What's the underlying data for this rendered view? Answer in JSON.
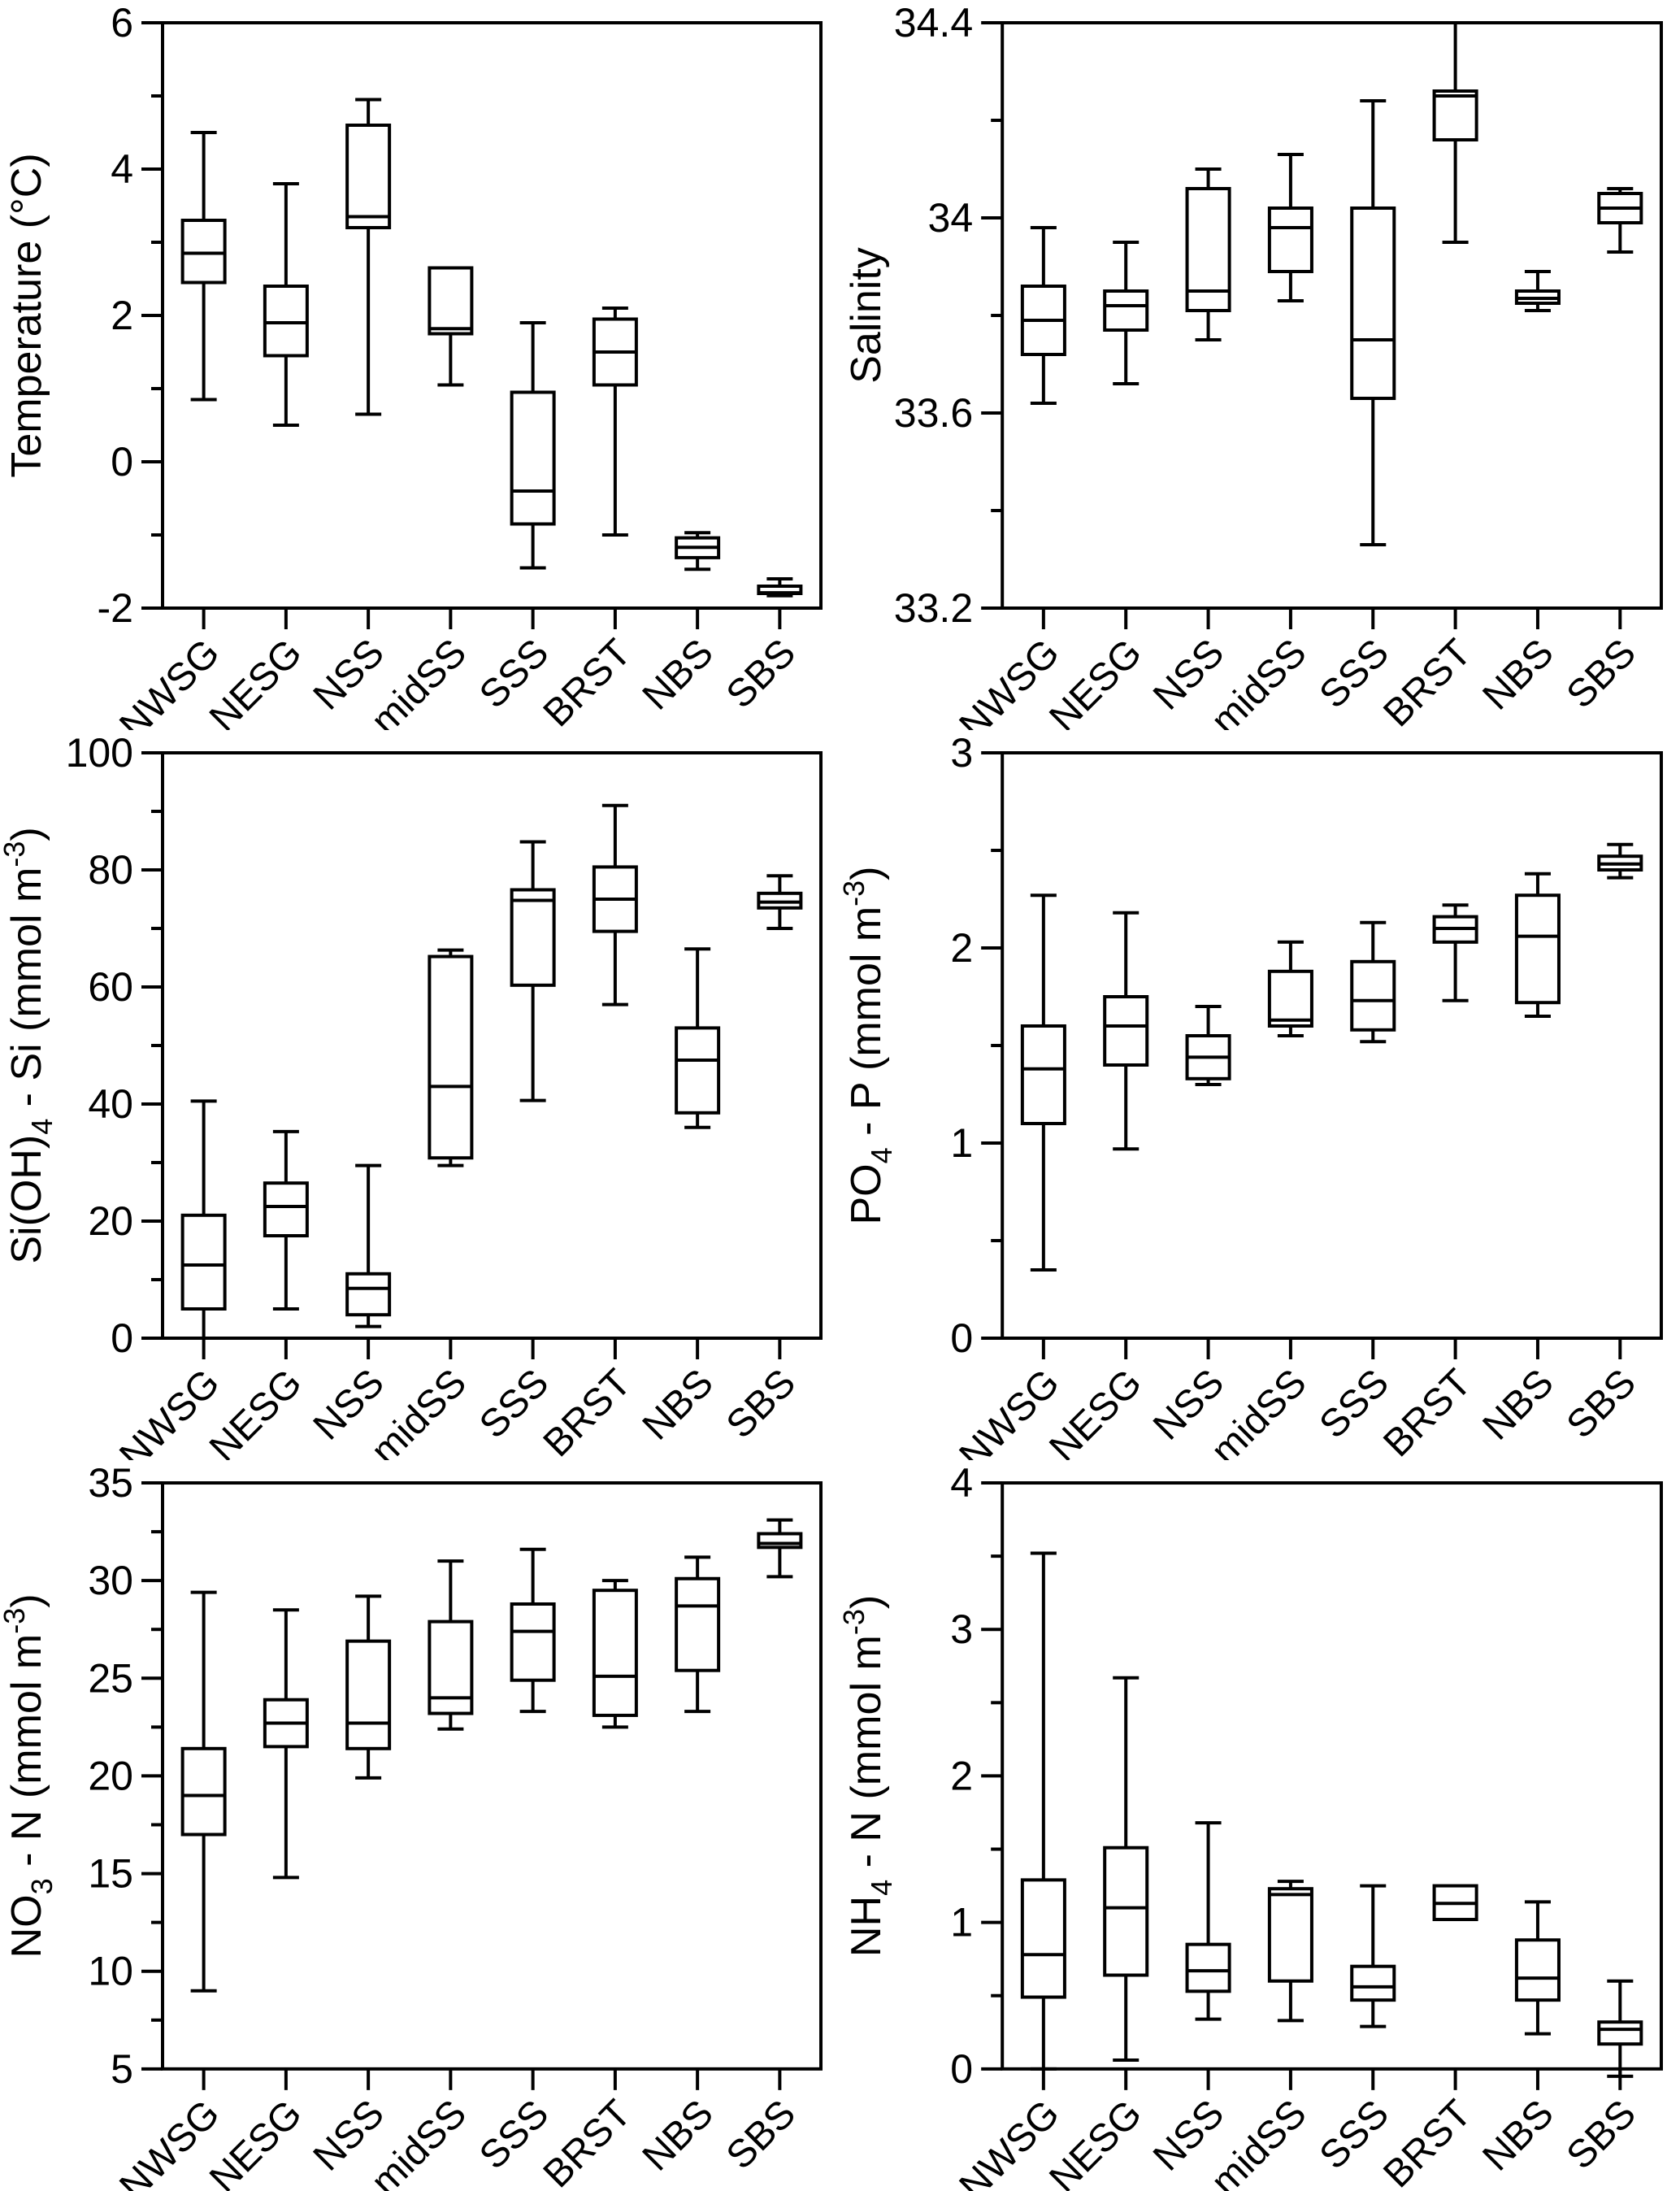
{
  "figure": {
    "description": "Six-panel box plot figure of hydrographic and nutrient properties by station group",
    "stations": [
      "NWSG",
      "NESG",
      "NSS",
      "midSS",
      "SSS",
      "BRST",
      "NBS",
      "SBS"
    ]
  },
  "colors": {
    "ink": "#000000",
    "paper": "#ffffff"
  },
  "chart_data": [
    {
      "id": "temperature",
      "type": "box",
      "ylabel_plain": "Temperature (°C)",
      "ylabel_parts": [
        {
          "t": "Temperature (°C)",
          "p": "n"
        }
      ],
      "ylim": [
        -2,
        6
      ],
      "yticks": [
        {
          "v": 6,
          "label": "6"
        },
        {
          "v": 4,
          "label": "4"
        },
        {
          "v": 2,
          "label": "2"
        },
        {
          "v": 0,
          "label": "0"
        },
        {
          "v": -2,
          "label": "-2"
        }
      ],
      "yticks_minor": [
        5,
        3,
        1,
        -1
      ],
      "grid": false,
      "categories": [
        "NWSG",
        "NESG",
        "NSS",
        "midSS",
        "SSS",
        "BRST",
        "NBS",
        "SBS"
      ],
      "boxes": [
        {
          "station": "NWSG",
          "low": 0.85,
          "q1": 2.45,
          "med": 2.85,
          "q3": 3.3,
          "high": 4.5
        },
        {
          "station": "NESG",
          "low": 0.5,
          "q1": 1.45,
          "med": 1.9,
          "q3": 2.4,
          "high": 3.8
        },
        {
          "station": "NSS",
          "low": 0.65,
          "q1": 3.2,
          "med": 3.35,
          "q3": 4.6,
          "high": 4.95
        },
        {
          "station": "midSS",
          "low": 1.05,
          "q1": 1.75,
          "med": 1.82,
          "q3": 2.65,
          "high": 2.65
        },
        {
          "station": "SSS",
          "low": -1.45,
          "q1": -0.85,
          "med": -0.4,
          "q3": 0.95,
          "high": 1.9
        },
        {
          "station": "BRST",
          "low": -1.0,
          "q1": 1.05,
          "med": 1.5,
          "q3": 1.95,
          "high": 2.1
        },
        {
          "station": "NBS",
          "low": -1.47,
          "q1": -1.31,
          "med": -1.17,
          "q3": -1.04,
          "high": -0.97
        },
        {
          "station": "SBS",
          "low": -1.83,
          "q1": -1.8,
          "med": -1.79,
          "q3": -1.7,
          "high": -1.6
        }
      ]
    },
    {
      "id": "salinity",
      "type": "box",
      "ylabel_plain": "Salinity",
      "ylabel_parts": [
        {
          "t": "Salinity",
          "p": "n"
        }
      ],
      "ylim": [
        33.2,
        34.4
      ],
      "yticks": [
        {
          "v": 34.4,
          "label": "34.4"
        },
        {
          "v": 34,
          "label": "34"
        },
        {
          "v": 33.6,
          "label": "33.6"
        },
        {
          "v": 33.2,
          "label": "33.2"
        }
      ],
      "yticks_minor": [
        34.2,
        33.8,
        33.4
      ],
      "grid": false,
      "categories": [
        "NWSG",
        "NESG",
        "NSS",
        "midSS",
        "SSS",
        "BRST",
        "NBS",
        "SBS"
      ],
      "boxes": [
        {
          "station": "NWSG",
          "low": 33.62,
          "q1": 33.72,
          "med": 33.79,
          "q3": 33.86,
          "high": 33.98
        },
        {
          "station": "NESG",
          "low": 33.66,
          "q1": 33.77,
          "med": 33.82,
          "q3": 33.85,
          "high": 33.95
        },
        {
          "station": "NSS",
          "low": 33.75,
          "q1": 33.81,
          "med": 33.85,
          "q3": 34.06,
          "high": 34.1
        },
        {
          "station": "midSS",
          "low": 33.83,
          "q1": 33.89,
          "med": 33.98,
          "q3": 34.02,
          "high": 34.13
        },
        {
          "station": "SSS",
          "low": 33.33,
          "q1": 33.63,
          "med": 33.75,
          "q3": 34.02,
          "high": 34.24
        },
        {
          "station": "BRST",
          "low": 33.95,
          "q1": 34.16,
          "med": 34.25,
          "q3": 34.26,
          "high": 34.4,
          "no_hi_cap": true
        },
        {
          "station": "NBS",
          "low": 33.81,
          "q1": 33.825,
          "med": 33.835,
          "q3": 33.85,
          "high": 33.89
        },
        {
          "station": "SBS",
          "low": 33.93,
          "q1": 33.99,
          "med": 34.02,
          "q3": 34.05,
          "high": 34.06
        }
      ]
    },
    {
      "id": "silicate",
      "type": "box",
      "ylabel_plain": "Si(OH)4 - Si (mmol m-3)",
      "ylabel_parts": [
        {
          "t": "Si(OH)",
          "p": "n"
        },
        {
          "t": "4",
          "p": "sub"
        },
        {
          "t": " - Si (mmol m",
          "p": "n"
        },
        {
          "t": "-3",
          "p": "sup"
        },
        {
          "t": ")",
          "p": "n"
        }
      ],
      "ylim": [
        0,
        100
      ],
      "yticks": [
        {
          "v": 100,
          "label": "100"
        },
        {
          "v": 80,
          "label": "80"
        },
        {
          "v": 60,
          "label": "60"
        },
        {
          "v": 40,
          "label": "40"
        },
        {
          "v": 20,
          "label": "20"
        },
        {
          "v": 0,
          "label": "0"
        }
      ],
      "yticks_minor": [
        90,
        70,
        50,
        30,
        10
      ],
      "grid": false,
      "categories": [
        "NWSG",
        "NESG",
        "NSS",
        "midSS",
        "SSS",
        "BRST",
        "NBS",
        "SBS"
      ],
      "boxes": [
        {
          "station": "NWSG",
          "low": 0,
          "q1": 5,
          "med": 12.5,
          "q3": 21,
          "high": 40.5,
          "no_lo_cap": true
        },
        {
          "station": "NESG",
          "low": 5,
          "q1": 17.5,
          "med": 22.5,
          "q3": 26.5,
          "high": 35.3
        },
        {
          "station": "NSS",
          "low": 2,
          "q1": 4,
          "med": 8.5,
          "q3": 11,
          "high": 29.5
        },
        {
          "station": "midSS",
          "low": 29.5,
          "q1": 30.8,
          "med": 43,
          "q3": 65.2,
          "high": 66.3
        },
        {
          "station": "SSS",
          "low": 40.6,
          "q1": 60.3,
          "med": 74.8,
          "q3": 76.6,
          "high": 84.8
        },
        {
          "station": "BRST",
          "low": 57,
          "q1": 69.5,
          "med": 75,
          "q3": 80.5,
          "high": 91
        },
        {
          "station": "NBS",
          "low": 36,
          "q1": 38.5,
          "med": 47.5,
          "q3": 53,
          "high": 66.5
        },
        {
          "station": "SBS",
          "low": 70,
          "q1": 73.5,
          "med": 74.5,
          "q3": 76,
          "high": 79
        }
      ]
    },
    {
      "id": "phosphate",
      "type": "box",
      "ylabel_plain": "PO4 - P (mmol m-3)",
      "ylabel_parts": [
        {
          "t": "PO",
          "p": "n"
        },
        {
          "t": "4",
          "p": "sub"
        },
        {
          "t": " - P (mmol m",
          "p": "n"
        },
        {
          "t": "-3",
          "p": "sup"
        },
        {
          "t": ")",
          "p": "n"
        }
      ],
      "ylim": [
        0,
        3
      ],
      "yticks": [
        {
          "v": 3,
          "label": "3"
        },
        {
          "v": 2,
          "label": "2"
        },
        {
          "v": 1,
          "label": "1"
        },
        {
          "v": 0,
          "label": "0"
        }
      ],
      "yticks_minor": [
        2.5,
        1.5,
        0.5
      ],
      "grid": false,
      "categories": [
        "NWSG",
        "NESG",
        "NSS",
        "midSS",
        "SSS",
        "BRST",
        "NBS",
        "SBS"
      ],
      "boxes": [
        {
          "station": "NWSG",
          "low": 0.35,
          "q1": 1.1,
          "med": 1.38,
          "q3": 1.6,
          "high": 2.27
        },
        {
          "station": "NESG",
          "low": 0.97,
          "q1": 1.4,
          "med": 1.6,
          "q3": 1.75,
          "high": 2.18
        },
        {
          "station": "NSS",
          "low": 1.3,
          "q1": 1.33,
          "med": 1.44,
          "q3": 1.55,
          "high": 1.7
        },
        {
          "station": "midSS",
          "low": 1.55,
          "q1": 1.6,
          "med": 1.63,
          "q3": 1.88,
          "high": 2.03
        },
        {
          "station": "SSS",
          "low": 1.52,
          "q1": 1.58,
          "med": 1.73,
          "q3": 1.93,
          "high": 2.13
        },
        {
          "station": "BRST",
          "low": 1.73,
          "q1": 2.03,
          "med": 2.1,
          "q3": 2.16,
          "high": 2.22
        },
        {
          "station": "NBS",
          "low": 1.65,
          "q1": 1.72,
          "med": 2.06,
          "q3": 2.27,
          "high": 2.38
        },
        {
          "station": "SBS",
          "low": 2.36,
          "q1": 2.4,
          "med": 2.43,
          "q3": 2.47,
          "high": 2.53
        }
      ]
    },
    {
      "id": "nitrate",
      "type": "box",
      "ylabel_plain": "NO3 - N (mmol m-3)",
      "ylabel_parts": [
        {
          "t": "NO",
          "p": "n"
        },
        {
          "t": "3",
          "p": "sub"
        },
        {
          "t": " - N (mmol m",
          "p": "n"
        },
        {
          "t": "-3",
          "p": "sup"
        },
        {
          "t": ")",
          "p": "n"
        }
      ],
      "ylim": [
        5,
        35
      ],
      "yticks": [
        {
          "v": 35,
          "label": "35"
        },
        {
          "v": 30,
          "label": "30"
        },
        {
          "v": 25,
          "label": "25"
        },
        {
          "v": 20,
          "label": "20"
        },
        {
          "v": 15,
          "label": "15"
        },
        {
          "v": 10,
          "label": "10"
        },
        {
          "v": 5,
          "label": "5"
        }
      ],
      "yticks_minor": [
        32.5,
        27.5,
        22.5,
        17.5,
        12.5,
        7.5
      ],
      "grid": false,
      "categories": [
        "NWSG",
        "NESG",
        "NSS",
        "midSS",
        "SSS",
        "BRST",
        "NBS",
        "SBS"
      ],
      "boxes": [
        {
          "station": "NWSG",
          "low": 9,
          "q1": 17,
          "med": 19,
          "q3": 21.4,
          "high": 29.4
        },
        {
          "station": "NESG",
          "low": 14.8,
          "q1": 21.5,
          "med": 22.7,
          "q3": 23.9,
          "high": 28.5
        },
        {
          "station": "NSS",
          "low": 19.9,
          "q1": 21.4,
          "med": 22.7,
          "q3": 26.9,
          "high": 29.2
        },
        {
          "station": "midSS",
          "low": 22.4,
          "q1": 23.2,
          "med": 24,
          "q3": 27.9,
          "high": 31
        },
        {
          "station": "SSS",
          "low": 23.3,
          "q1": 24.9,
          "med": 27.4,
          "q3": 28.8,
          "high": 31.6
        },
        {
          "station": "BRST",
          "low": 22.5,
          "q1": 23.1,
          "med": 25.1,
          "q3": 29.5,
          "high": 30
        },
        {
          "station": "NBS",
          "low": 23.3,
          "q1": 25.4,
          "med": 28.7,
          "q3": 30.1,
          "high": 31.2
        },
        {
          "station": "SBS",
          "low": 30.2,
          "q1": 31.7,
          "med": 31.9,
          "q3": 32.4,
          "high": 33.1
        }
      ]
    },
    {
      "id": "ammonium",
      "type": "box",
      "ylabel_plain": "NH4 - N (mmol m-3)",
      "ylabel_parts": [
        {
          "t": "NH",
          "p": "n"
        },
        {
          "t": "4",
          "p": "sub"
        },
        {
          "t": " - N (mmol m",
          "p": "n"
        },
        {
          "t": "-3",
          "p": "sup"
        },
        {
          "t": ")",
          "p": "n"
        }
      ],
      "ylim": [
        0,
        4
      ],
      "yticks": [
        {
          "v": 4,
          "label": "4"
        },
        {
          "v": 3,
          "label": "3"
        },
        {
          "v": 2,
          "label": "2"
        },
        {
          "v": 1,
          "label": "1"
        },
        {
          "v": 0,
          "label": "0"
        }
      ],
      "yticks_minor": [
        3.5,
        2.5,
        1.5,
        0.5
      ],
      "grid": false,
      "categories": [
        "NWSG",
        "NESG",
        "NSS",
        "midSS",
        "SSS",
        "BRST",
        "NBS",
        "SBS"
      ],
      "boxes": [
        {
          "station": "NWSG",
          "low": 0.0,
          "q1": 0.49,
          "med": 0.78,
          "q3": 1.29,
          "high": 3.52
        },
        {
          "station": "NESG",
          "low": 0.06,
          "q1": 0.64,
          "med": 1.1,
          "q3": 1.51,
          "high": 2.67
        },
        {
          "station": "NSS",
          "low": 0.34,
          "q1": 0.53,
          "med": 0.67,
          "q3": 0.85,
          "high": 1.68
        },
        {
          "station": "midSS",
          "low": 0.33,
          "q1": 0.6,
          "med": 1.19,
          "q3": 1.23,
          "high": 1.28
        },
        {
          "station": "SSS",
          "low": 0.29,
          "q1": 0.47,
          "med": 0.56,
          "q3": 0.7,
          "high": 1.25
        },
        {
          "station": "BRST",
          "low": 1.02,
          "q1": 1.02,
          "med": 1.13,
          "q3": 1.25,
          "high": 1.25
        },
        {
          "station": "NBS",
          "low": 0.24,
          "q1": 0.47,
          "med": 0.62,
          "q3": 0.88,
          "high": 1.14
        },
        {
          "station": "SBS",
          "low": -0.05,
          "q1": 0.17,
          "med": 0.27,
          "q3": 0.32,
          "high": 0.6
        }
      ]
    }
  ]
}
